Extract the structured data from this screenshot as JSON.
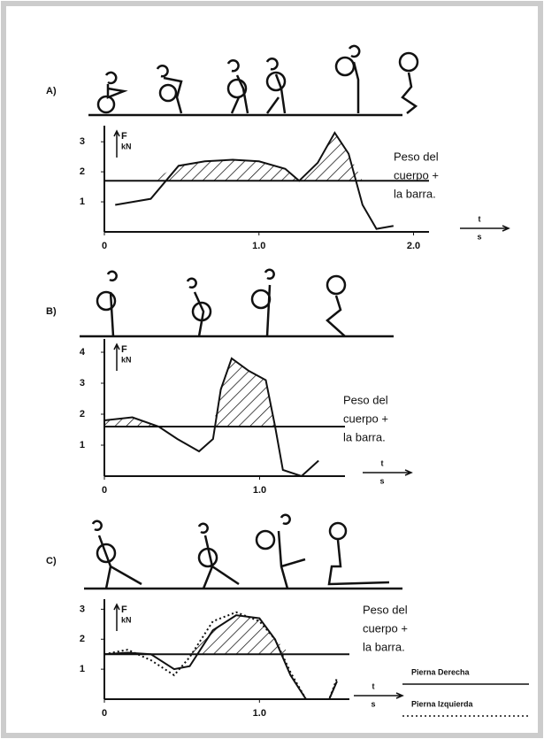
{
  "chart_data": [
    {
      "type": "line",
      "panel_label": "A)",
      "ylabel": "F",
      "yunit": "kN",
      "xlabel": "t",
      "xunit": "s",
      "x": [
        0.07,
        0.3,
        0.48,
        0.65,
        0.83,
        1.0,
        1.17,
        1.26,
        1.38,
        1.49,
        1.58,
        1.67,
        1.76,
        1.87
      ],
      "values": [
        0.9,
        1.1,
        2.2,
        2.35,
        2.4,
        2.35,
        2.1,
        1.7,
        2.3,
        3.3,
        2.6,
        0.9,
        0.1,
        0.2
      ],
      "color": "#111111",
      "xlim": [
        0,
        2.1
      ],
      "ylim": [
        0,
        3.3
      ],
      "xticks": [
        0,
        {
          "value": 1,
          "label": "1.0"
        },
        {
          "value": 2,
          "label": "2.0"
        }
      ],
      "yticks": [
        1,
        2,
        3
      ],
      "reference_line": 1.7,
      "hatch": true,
      "annotation": [
        "Peso del",
        "cuerpo +",
        "la barra."
      ]
    },
    {
      "type": "line",
      "panel_label": "B)",
      "ylabel": "F",
      "yunit": "kN",
      "xlabel": "t",
      "xunit": "s",
      "x": [
        0,
        0.18,
        0.35,
        0.47,
        0.61,
        0.7,
        0.75,
        0.82,
        0.93,
        1.04,
        1.1,
        1.15,
        1.27,
        1.38
      ],
      "values": [
        1.8,
        1.9,
        1.6,
        1.2,
        0.8,
        1.2,
        2.8,
        3.8,
        3.4,
        3.1,
        1.6,
        0.2,
        0,
        0.5
      ],
      "color": "#111111",
      "xlim": [
        0,
        1.55
      ],
      "ylim": [
        0,
        4.2
      ],
      "xticks": [
        0,
        {
          "value": 1,
          "label": "1.0"
        }
      ],
      "yticks": [
        1,
        2,
        3,
        4
      ],
      "reference_line": 1.6,
      "hatch": true,
      "annotation": [
        "Peso del",
        "cuerpo +",
        "la barra."
      ]
    },
    {
      "type": "line",
      "panel_label": "C)",
      "ylabel": "F",
      "yunit": "kN",
      "xlabel": "t",
      "xunit": "s",
      "x": [
        0,
        0.15,
        0.3,
        0.45,
        0.55,
        0.7,
        0.85,
        1.0,
        1.1,
        1.2,
        1.3,
        1.45,
        1.5
      ],
      "series": [
        {
          "name": "Pierna Derecha",
          "color": "#111111",
          "style": "solid",
          "values": [
            1.5,
            1.55,
            1.5,
            1.0,
            1.1,
            2.3,
            2.8,
            2.7,
            2.0,
            0.8,
            0,
            0,
            0.6
          ]
        },
        {
          "name": "Pierna Izquierda",
          "color": "#111111",
          "style": "dotted",
          "values": [
            1.5,
            1.65,
            1.3,
            0.8,
            1.4,
            2.6,
            2.9,
            2.6,
            2.0,
            0.9,
            0,
            0,
            0.7
          ]
        }
      ],
      "xlim": [
        0,
        1.58
      ],
      "ylim": [
        0,
        3.1
      ],
      "xticks": [
        0,
        {
          "value": 1,
          "label": "1.0"
        }
      ],
      "yticks": [
        1,
        2,
        3
      ],
      "reference_line": 1.5,
      "hatch": true,
      "annotation": [
        "Peso del",
        "cuerpo +",
        "la barra."
      ]
    }
  ]
}
